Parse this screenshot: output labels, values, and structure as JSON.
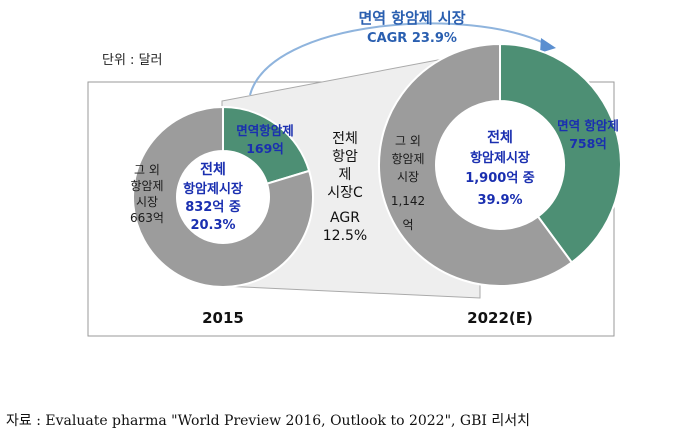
{
  "chart_data": {
    "type": "donut",
    "unit_label": "단위 : 달러",
    "cagr_title": "면역 항암제 시장",
    "cagr_value": "CAGR 23.9%",
    "middle_cagr_lines": [
      "전체",
      "항암",
      "제",
      "시장C",
      "AGR",
      "12.5%"
    ],
    "colors": {
      "immuno": "#4d8f74",
      "other": "#9c9c9c",
      "accent_text": "#1a2fb0",
      "cagr_text": "#2a5fb0"
    },
    "charts": [
      {
        "year": "2015",
        "total": 832,
        "center_lines": [
          "전체",
          "항암제시장",
          "832억 중",
          "20.3%"
        ],
        "segments": [
          {
            "label_lines": [
              "면역항암제",
              "169억"
            ],
            "value": 169,
            "share": 20.3,
            "color": "#4d8f74"
          },
          {
            "label_lines": [
              "그 외",
              "항암제",
              "시장",
              "663억"
            ],
            "value": 663,
            "share": 79.7,
            "color": "#9c9c9c"
          }
        ]
      },
      {
        "year": "2022(E)",
        "total": 1900,
        "center_lines": [
          "전체",
          "항암제시장",
          "1,900억 중",
          "39.9%"
        ],
        "segments": [
          {
            "label_lines": [
              "면역 항암제",
              "758억"
            ],
            "value": 758,
            "share": 39.9,
            "color": "#4d8f74"
          },
          {
            "label_lines": [
              "그 외",
              "항암제",
              "시장",
              "1,142",
              "억"
            ],
            "value": 1142,
            "share": 60.1,
            "color": "#9c9c9c"
          }
        ]
      }
    ],
    "source": "자료 : Evaluate pharma \"World Preview 2016, Outlook to 2022\",  GBI 리서치"
  }
}
